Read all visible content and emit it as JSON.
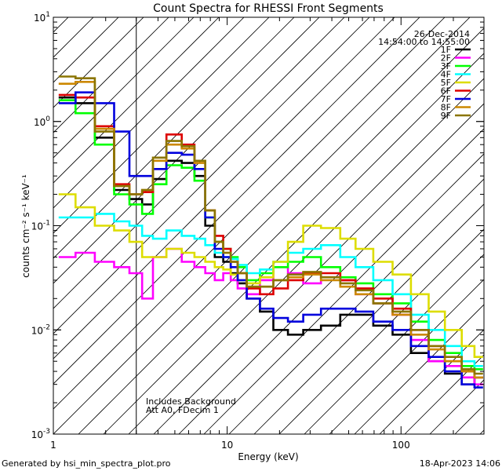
{
  "chart_data": {
    "type": "line",
    "title": "Count Spectra for RHESSI Front Segments",
    "xlabel": "Energy (keV)",
    "ylabel": "counts cm⁻² s⁻¹ keV⁻¹",
    "xscale": "log",
    "yscale": "log",
    "xlim": [
      1.0,
      300.0
    ],
    "ylim": [
      0.001,
      10.0
    ],
    "x_tick_labels": [
      {
        "value": 1,
        "label": "1"
      },
      {
        "value": 10,
        "label": "10"
      },
      {
        "value": 100,
        "label": "100"
      }
    ],
    "y_tick_labels": [
      {
        "value": 10,
        "label": "10",
        "exp": "1"
      },
      {
        "value": 1,
        "label": "10",
        "exp": "0"
      },
      {
        "value": 0.1,
        "label": "10",
        "exp": "-1"
      },
      {
        "value": 0.01,
        "label": "10",
        "exp": "-2"
      },
      {
        "value": 0.001,
        "label": "10",
        "exp": "-3"
      }
    ],
    "shaded_region": {
      "xmin": 1.0,
      "xmax": 3.0,
      "pattern": "diagonal-hatch"
    },
    "legend": {
      "position": "top-right",
      "date": "26-Dec-2014",
      "time_range": "14:54:00 to 14:55:00"
    },
    "annotations": [
      "Includes Background",
      "Att A0, FDecim 1"
    ],
    "series": [
      {
        "name": "1F",
        "color": "#000000",
        "x": [
          1.2,
          1.5,
          2.0,
          2.5,
          3.0,
          3.5,
          4.0,
          5.0,
          6.0,
          7.0,
          8.0,
          9.0,
          10.0,
          11.0,
          12.0,
          14.0,
          17.0,
          20.0,
          25.0,
          30.0,
          40.0,
          50.0,
          60.0,
          80.0,
          100.0,
          130.0,
          160.0,
          200.0,
          250.0,
          280.0
        ],
        "y": [
          1.7,
          1.5,
          0.7,
          0.22,
          0.18,
          0.16,
          0.28,
          0.42,
          0.4,
          0.3,
          0.1,
          0.05,
          0.045,
          0.035,
          0.028,
          0.02,
          0.015,
          0.01,
          0.009,
          0.01,
          0.011,
          0.014,
          0.014,
          0.011,
          0.009,
          0.006,
          0.005,
          0.0038,
          0.003,
          0.0035
        ]
      },
      {
        "name": "2F",
        "color": "#ff00ff",
        "x": [
          1.2,
          1.5,
          2.0,
          2.5,
          3.0,
          3.5,
          4.0,
          5.0,
          6.0,
          7.0,
          8.0,
          9.0,
          10.0,
          11.0,
          12.0,
          14.0,
          17.0,
          20.0,
          25.0,
          30.0,
          40.0,
          50.0,
          60.0,
          80.0,
          100.0,
          130.0,
          160.0,
          200.0,
          250.0,
          280.0
        ],
        "y": [
          0.05,
          0.055,
          0.045,
          0.04,
          0.035,
          0.02,
          0.05,
          0.06,
          0.045,
          0.04,
          0.035,
          0.03,
          0.035,
          0.03,
          0.025,
          0.022,
          0.03,
          0.04,
          0.035,
          0.028,
          0.032,
          0.03,
          0.022,
          0.018,
          0.014,
          0.008,
          0.005,
          0.0045,
          0.0035,
          0.003
        ]
      },
      {
        "name": "3F",
        "color": "#00ff00",
        "x": [
          1.2,
          1.5,
          2.0,
          2.5,
          3.0,
          3.5,
          4.0,
          5.0,
          6.0,
          7.0,
          8.0,
          9.0,
          10.0,
          11.0,
          12.0,
          14.0,
          17.0,
          20.0,
          25.0,
          30.0,
          40.0,
          50.0,
          60.0,
          80.0,
          100.0,
          130.0,
          160.0,
          200.0,
          250.0,
          280.0
        ],
        "y": [
          1.6,
          1.2,
          0.6,
          0.2,
          0.16,
          0.13,
          0.25,
          0.38,
          0.36,
          0.27,
          0.12,
          0.07,
          0.06,
          0.05,
          0.04,
          0.03,
          0.035,
          0.04,
          0.045,
          0.05,
          0.04,
          0.032,
          0.028,
          0.022,
          0.018,
          0.012,
          0.008,
          0.006,
          0.0045,
          0.0042
        ]
      },
      {
        "name": "4F",
        "color": "#00ffff",
        "x": [
          1.2,
          1.5,
          2.0,
          2.5,
          3.0,
          3.5,
          4.0,
          5.0,
          6.0,
          7.0,
          8.0,
          9.0,
          10.0,
          11.0,
          12.0,
          14.0,
          17.0,
          20.0,
          25.0,
          30.0,
          40.0,
          50.0,
          60.0,
          80.0,
          100.0,
          130.0,
          160.0,
          200.0,
          250.0,
          280.0
        ],
        "y": [
          0.12,
          0.12,
          0.13,
          0.11,
          0.1,
          0.08,
          0.075,
          0.09,
          0.08,
          0.075,
          0.065,
          0.055,
          0.05,
          0.048,
          0.042,
          0.035,
          0.038,
          0.045,
          0.055,
          0.06,
          0.065,
          0.05,
          0.04,
          0.03,
          0.022,
          0.014,
          0.01,
          0.007,
          0.005,
          0.0045
        ]
      },
      {
        "name": "5F",
        "color": "#dddd00",
        "x": [
          1.2,
          1.5,
          2.0,
          2.5,
          3.0,
          3.5,
          4.0,
          5.0,
          6.0,
          7.0,
          8.0,
          9.0,
          10.0,
          11.0,
          12.0,
          14.0,
          17.0,
          20.0,
          25.0,
          30.0,
          40.0,
          50.0,
          60.0,
          80.0,
          100.0,
          130.0,
          160.0,
          200.0,
          250.0,
          280.0
        ],
        "y": [
          0.2,
          0.15,
          0.1,
          0.09,
          0.07,
          0.05,
          0.05,
          0.06,
          0.055,
          0.05,
          0.045,
          0.04,
          0.038,
          0.034,
          0.03,
          0.028,
          0.032,
          0.045,
          0.07,
          0.1,
          0.095,
          0.075,
          0.06,
          0.045,
          0.034,
          0.022,
          0.015,
          0.01,
          0.007,
          0.0055
        ]
      },
      {
        "name": "6F",
        "color": "#dd0000",
        "x": [
          1.2,
          1.5,
          2.0,
          2.5,
          3.0,
          3.5,
          4.0,
          5.0,
          6.0,
          7.0,
          8.0,
          9.0,
          10.0,
          11.0,
          12.0,
          14.0,
          17.0,
          20.0,
          25.0,
          30.0,
          40.0,
          50.0,
          60.0,
          80.0,
          100.0,
          130.0,
          160.0,
          200.0,
          250.0,
          280.0
        ],
        "y": [
          1.8,
          1.7,
          0.9,
          0.25,
          0.2,
          0.21,
          0.35,
          0.75,
          0.6,
          0.42,
          0.14,
          0.08,
          0.06,
          0.045,
          0.035,
          0.025,
          0.022,
          0.025,
          0.03,
          0.035,
          0.035,
          0.03,
          0.025,
          0.02,
          0.016,
          0.01,
          0.007,
          0.005,
          0.004,
          0.0035
        ]
      },
      {
        "name": "7F",
        "color": "#0000dd",
        "x": [
          1.2,
          1.5,
          2.0,
          2.5,
          3.0,
          3.5,
          4.0,
          5.0,
          6.0,
          7.0,
          8.0,
          9.0,
          10.0,
          11.0,
          12.0,
          14.0,
          17.0,
          20.0,
          25.0,
          30.0,
          40.0,
          50.0,
          60.0,
          80.0,
          100.0,
          130.0,
          160.0,
          200.0,
          250.0,
          280.0
        ],
        "y": [
          1.5,
          1.9,
          1.5,
          0.8,
          0.3,
          0.3,
          0.35,
          0.5,
          0.48,
          0.35,
          0.12,
          0.06,
          0.05,
          0.04,
          0.03,
          0.02,
          0.016,
          0.013,
          0.012,
          0.014,
          0.016,
          0.016,
          0.015,
          0.012,
          0.01,
          0.007,
          0.0055,
          0.004,
          0.003,
          0.0028
        ]
      },
      {
        "name": "8F",
        "color": "#cc8800",
        "x": [
          1.2,
          1.5,
          2.0,
          2.5,
          3.0,
          3.5,
          4.0,
          5.0,
          6.0,
          7.0,
          8.0,
          9.0,
          10.0,
          11.0,
          12.0,
          14.0,
          17.0,
          20.0,
          25.0,
          30.0,
          40.0,
          50.0,
          60.0,
          80.0,
          100.0,
          130.0,
          160.0,
          200.0,
          250.0,
          280.0
        ],
        "y": [
          2.3,
          2.4,
          0.85,
          0.24,
          0.2,
          0.22,
          0.42,
          0.6,
          0.55,
          0.4,
          0.14,
          0.07,
          0.055,
          0.045,
          0.035,
          0.026,
          0.026,
          0.03,
          0.032,
          0.034,
          0.03,
          0.026,
          0.022,
          0.018,
          0.014,
          0.009,
          0.0065,
          0.005,
          0.004,
          0.0035
        ]
      },
      {
        "name": "9F",
        "color": "#8b7500",
        "x": [
          1.2,
          1.5,
          2.0,
          2.5,
          3.0,
          3.5,
          4.0,
          5.0,
          6.0,
          7.0,
          8.0,
          9.0,
          10.0,
          11.0,
          12.0,
          14.0,
          17.0,
          20.0,
          25.0,
          30.0,
          40.0,
          50.0,
          60.0,
          80.0,
          100.0,
          130.0,
          160.0,
          200.0,
          250.0,
          280.0
        ],
        "y": [
          2.7,
          2.6,
          0.8,
          0.24,
          0.2,
          0.22,
          0.45,
          0.65,
          0.58,
          0.42,
          0.14,
          0.07,
          0.055,
          0.045,
          0.035,
          0.026,
          0.026,
          0.03,
          0.034,
          0.036,
          0.032,
          0.028,
          0.024,
          0.018,
          0.015,
          0.01,
          0.007,
          0.0055,
          0.0042,
          0.0038
        ]
      }
    ]
  },
  "footer": {
    "generated_by": "Generated by hsi_min_spectra_plot.pro",
    "timestamp": "18-Apr-2023 14:06"
  }
}
